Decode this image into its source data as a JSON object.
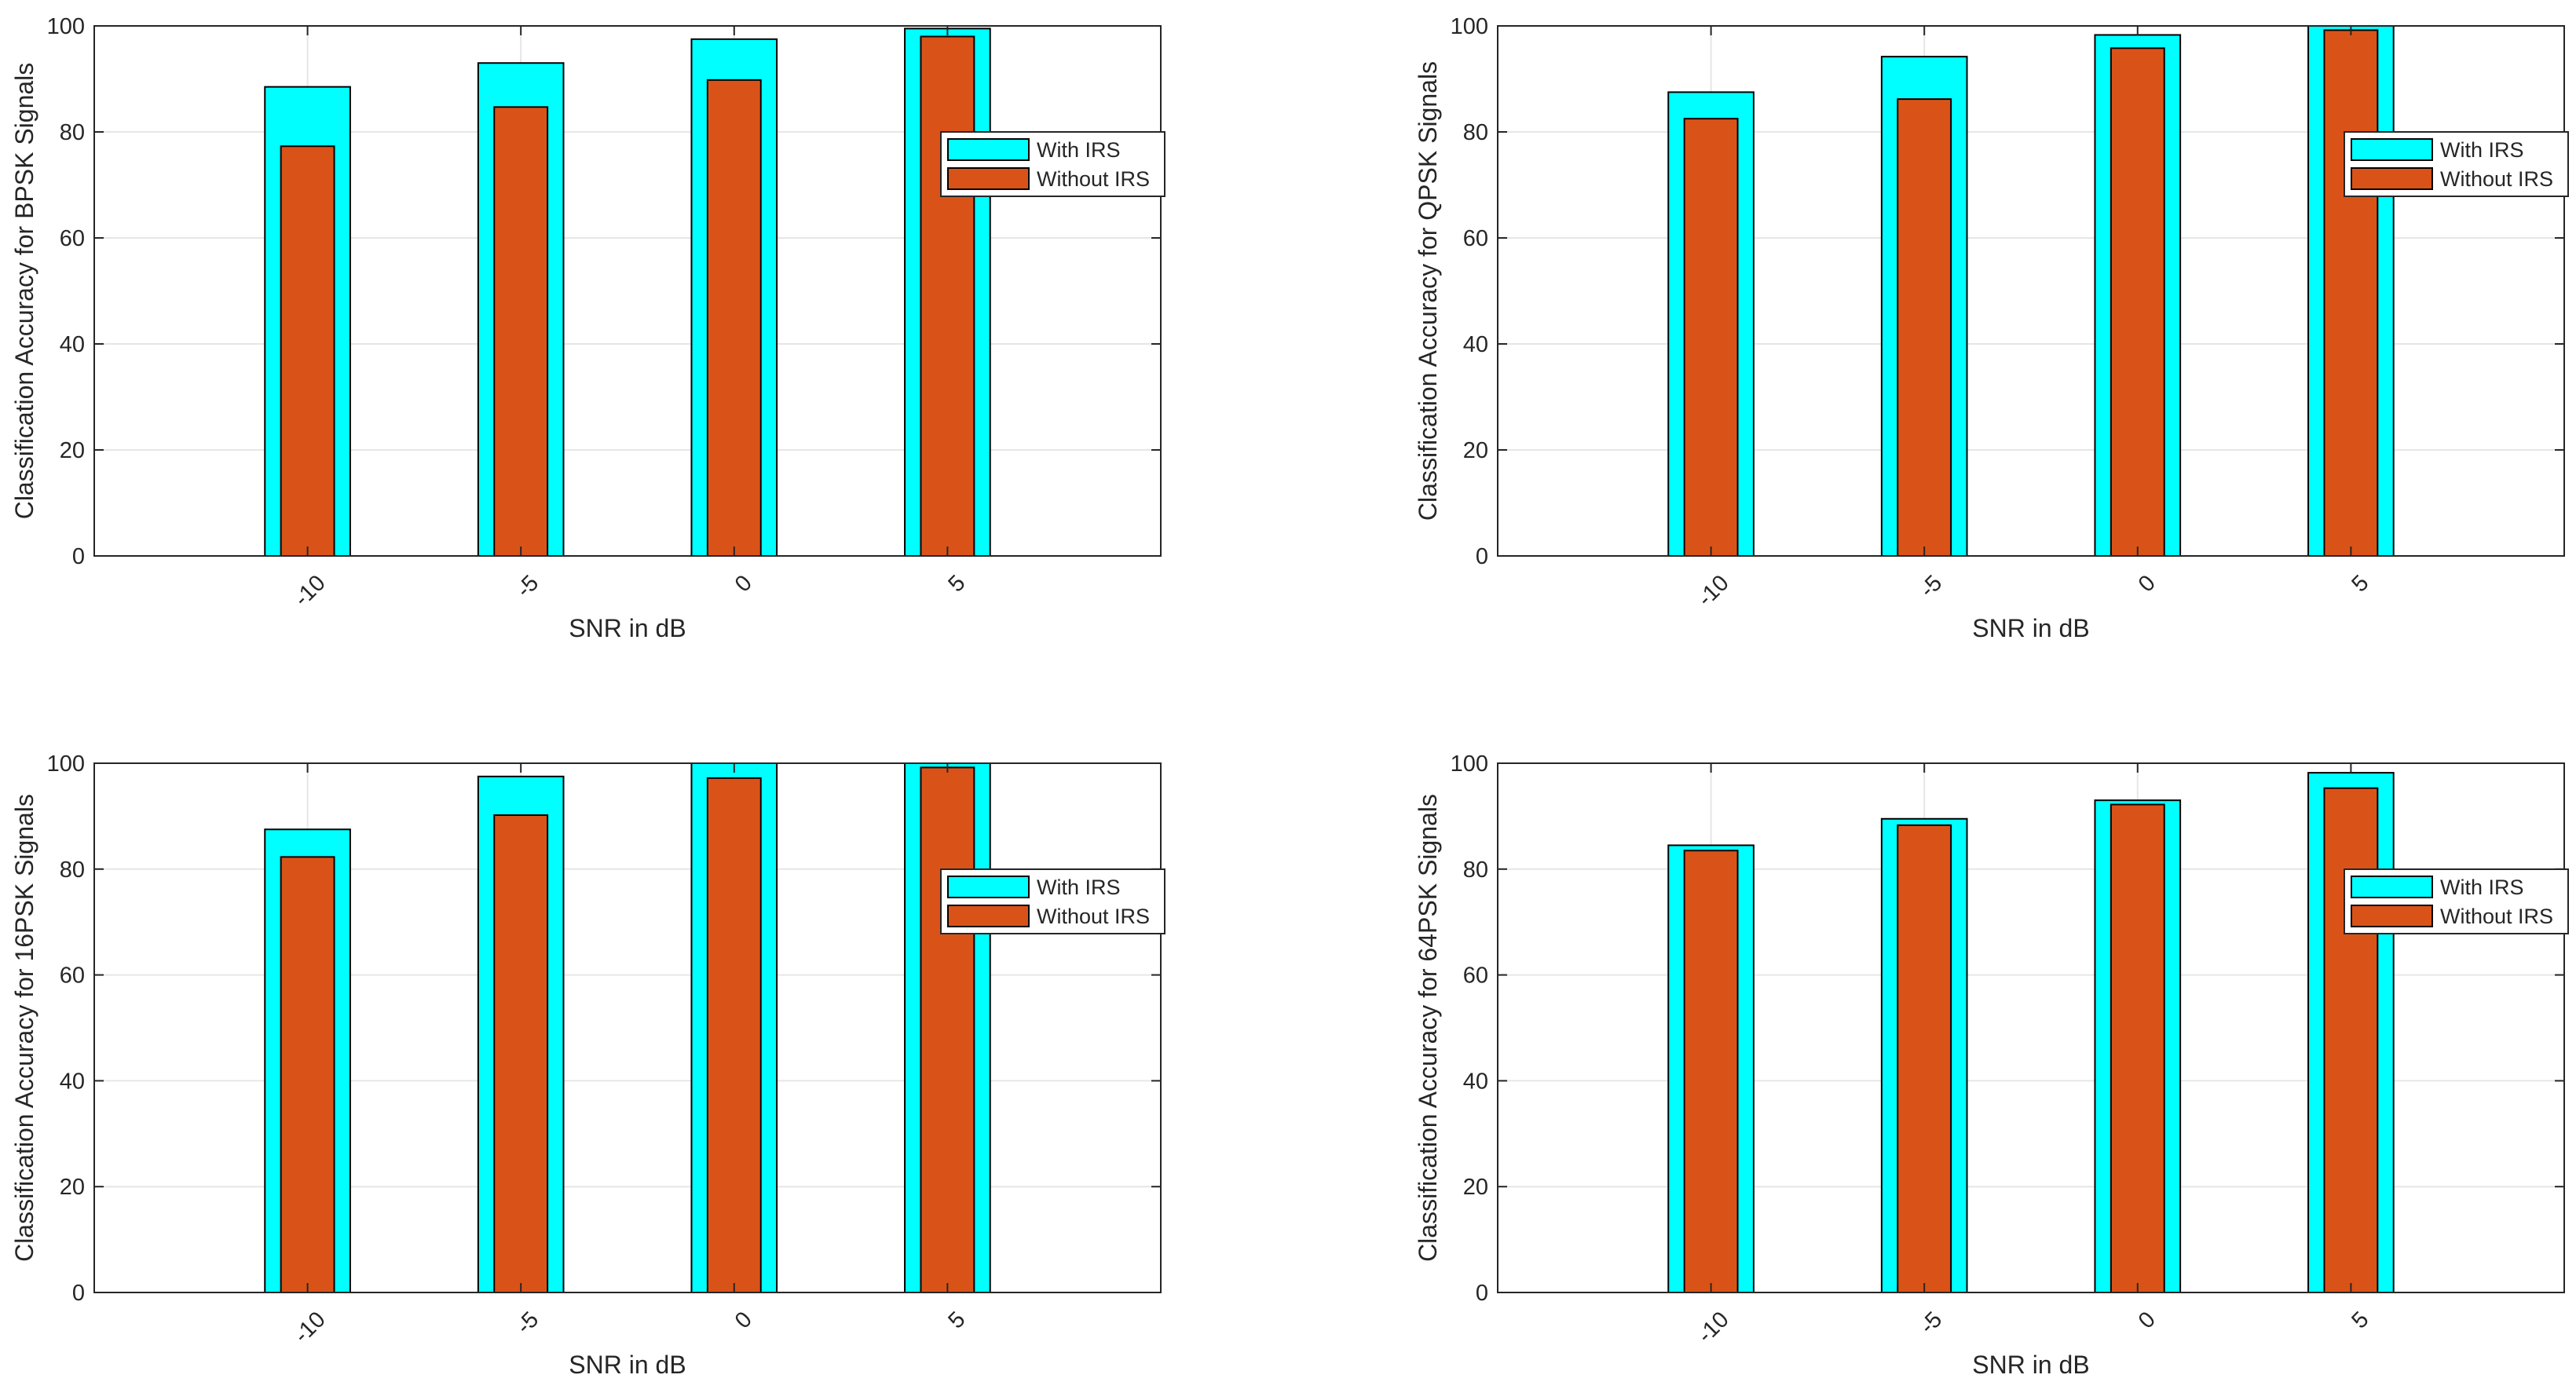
{
  "figure": {
    "background": "#ffffff",
    "grid_color": "#e6e6e6",
    "axis_color": "#262626"
  },
  "chart_data": [
    {
      "type": "bar",
      "panel": "top-left",
      "title": "",
      "xlabel": "SNR in dB",
      "ylabel": "Classification Accuracy for BPSK Signals",
      "categories": [
        "-10",
        "-5",
        "0",
        "5"
      ],
      "x": [
        -10,
        -5,
        0,
        5
      ],
      "xlim": [
        -15,
        10
      ],
      "ylim": [
        0,
        100
      ],
      "yticks": [
        "0",
        "20",
        "40",
        "60",
        "80",
        "100"
      ],
      "grid": true,
      "legend_position": "right",
      "series": [
        {
          "name": "With IRS",
          "values": [
            88.5,
            93,
            97.5,
            99.5
          ],
          "color": "#00ffff"
        },
        {
          "name": "Without IRS",
          "values": [
            77.3,
            84.7,
            89.8,
            98
          ],
          "color": "#d95319"
        }
      ]
    },
    {
      "type": "bar",
      "panel": "top-right",
      "title": "",
      "xlabel": "SNR in dB",
      "ylabel": "Classification Accuracy for QPSK Signals",
      "categories": [
        "-10",
        "-5",
        "0",
        "5"
      ],
      "x": [
        -10,
        -5,
        0,
        5
      ],
      "xlim": [
        -15,
        10
      ],
      "ylim": [
        0,
        100
      ],
      "yticks": [
        "0",
        "20",
        "40",
        "60",
        "80",
        "100"
      ],
      "grid": true,
      "legend_position": "right",
      "series": [
        {
          "name": "With IRS",
          "values": [
            87.5,
            94.2,
            98.3,
            100
          ],
          "color": "#00ffff"
        },
        {
          "name": "Without IRS",
          "values": [
            82.5,
            86.2,
            95.8,
            99.2
          ],
          "color": "#d95319"
        }
      ]
    },
    {
      "type": "bar",
      "panel": "bottom-left",
      "title": "",
      "xlabel": "SNR in dB",
      "ylabel": "Classification Accuracy for 16PSK Signals",
      "categories": [
        "-10",
        "-5",
        "0",
        "5"
      ],
      "x": [
        -10,
        -5,
        0,
        5
      ],
      "xlim": [
        -15,
        10
      ],
      "ylim": [
        0,
        100
      ],
      "yticks": [
        "0",
        "20",
        "40",
        "60",
        "80",
        "100"
      ],
      "grid": true,
      "legend_position": "right",
      "series": [
        {
          "name": "With IRS",
          "values": [
            87.5,
            97.5,
            100,
            100
          ],
          "color": "#00ffff"
        },
        {
          "name": "Without IRS",
          "values": [
            82.3,
            90.2,
            97.2,
            99.2
          ],
          "color": "#d95319"
        }
      ]
    },
    {
      "type": "bar",
      "panel": "bottom-right",
      "title": "",
      "xlabel": "SNR in dB",
      "ylabel": "Classification Accuracy for 64PSK Signals",
      "categories": [
        "-10",
        "-5",
        "0",
        "5"
      ],
      "x": [
        -10,
        -5,
        0,
        5
      ],
      "xlim": [
        -15,
        10
      ],
      "ylim": [
        0,
        100
      ],
      "yticks": [
        "0",
        "20",
        "40",
        "60",
        "80",
        "100"
      ],
      "grid": true,
      "legend_position": "right",
      "series": [
        {
          "name": "With IRS",
          "values": [
            84.5,
            89.5,
            93,
            98.2
          ],
          "color": "#00ffff"
        },
        {
          "name": "Without IRS",
          "values": [
            83.5,
            88.3,
            92.2,
            95.3
          ],
          "color": "#d95319"
        }
      ]
    }
  ]
}
